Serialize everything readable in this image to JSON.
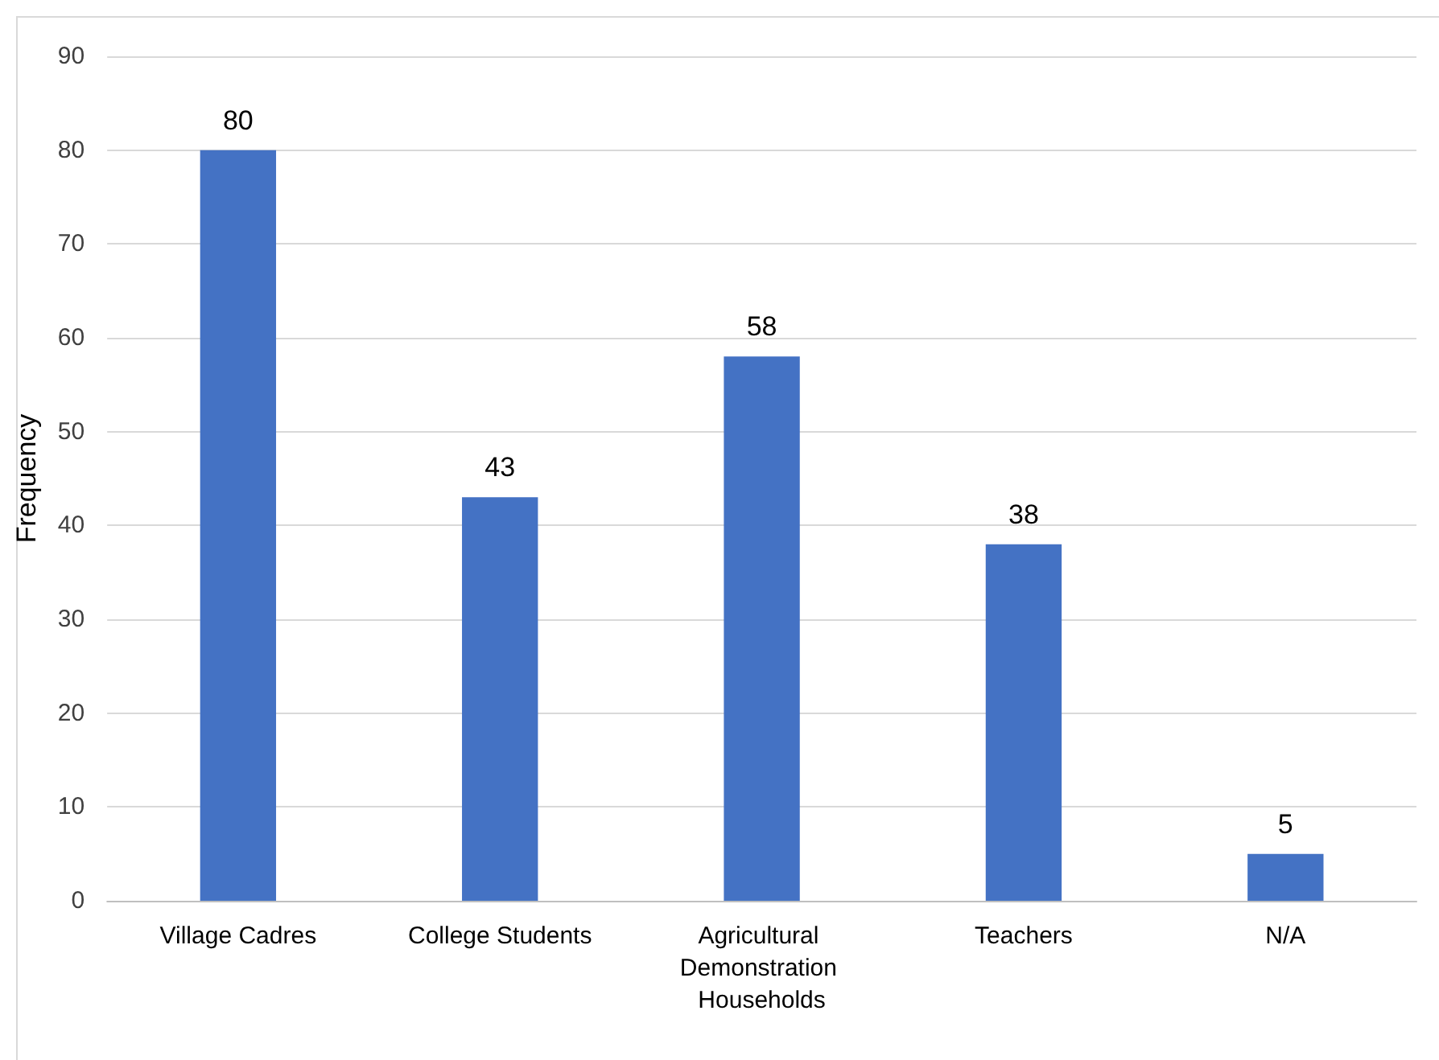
{
  "chart_data": {
    "type": "bar",
    "ylabel": "Frequency",
    "categories": [
      "Village Cadres",
      "College Students",
      "Agricultural Demonstration Households",
      "Teachers",
      "N/A"
    ],
    "values": [
      80,
      43,
      58,
      38,
      5
    ],
    "color": "#4472c4",
    "ylim": [
      0,
      90
    ],
    "yticks": [
      0,
      10,
      20,
      30,
      40,
      50,
      60,
      70,
      80,
      90
    ],
    "grid": "y",
    "data_labels": true
  }
}
